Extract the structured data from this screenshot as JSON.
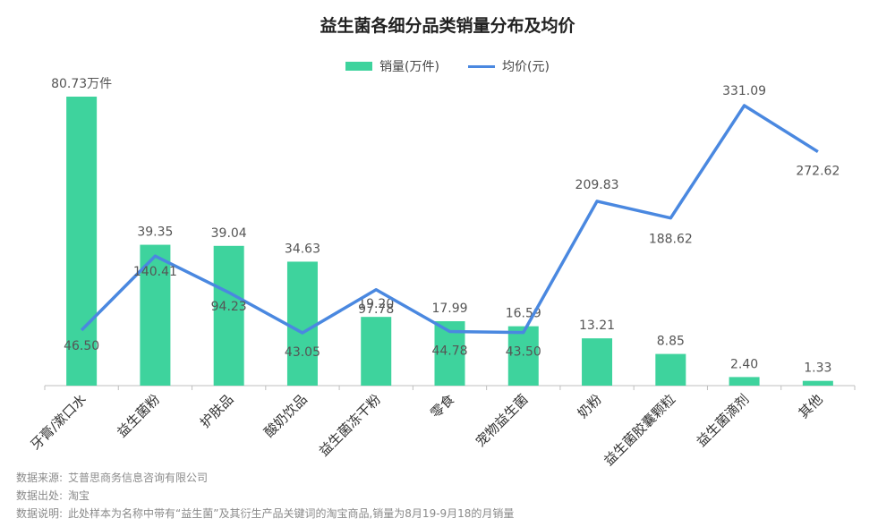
{
  "chart_data": {
    "type": "bar",
    "title": "益生菌各细分品类销量分布及均价",
    "categories": [
      "牙膏/漱口水",
      "益生菌粉",
      "护肤品",
      "酸奶饮品",
      "益生菌冻干粉",
      "零食",
      "宠物益生菌",
      "奶粉",
      "益生菌胶囊颗粒",
      "益生菌滴剂",
      "其他"
    ],
    "series": [
      {
        "name": "销量(万件)",
        "type": "bar",
        "values": [
          80.73,
          39.35,
          39.04,
          34.63,
          19.2,
          17.99,
          16.59,
          13.21,
          8.85,
          2.4,
          1.33
        ],
        "labels": [
          "80.73万件",
          "39.35",
          "39.04",
          "34.63",
          "19.20",
          "17.99",
          "16.59",
          "13.21",
          "8.85",
          "2.40",
          "1.33"
        ]
      },
      {
        "name": "均价(元)",
        "type": "line",
        "values": [
          46.5,
          140.41,
          94.23,
          43.05,
          97.78,
          44.78,
          43.5,
          209.83,
          188.62,
          331.09,
          272.62
        ],
        "labels": [
          "46.50",
          "140.41",
          "94.23",
          "43.05",
          "97.78",
          "44.78",
          "43.50",
          "209.83",
          "188.62",
          "331.09",
          "272.62"
        ]
      }
    ],
    "ylim_bar": [
      0,
      80.73
    ],
    "ylim_line": [
      0,
      331.09
    ],
    "legend": "top-center",
    "grid": false,
    "colors": {
      "bar": "#3ed39d",
      "line": "#4a88e0"
    }
  },
  "footer": {
    "source_label": "数据来源:",
    "source_value": "艾普思商务信息咨询有限公司",
    "origin_label": "数据出处:",
    "origin_value": "淘宝",
    "note_label": "数据说明:",
    "note_value": "此处样本为名称中带有“益生菌”及其衍生产品关键词的淘宝商品,销量为8月19-9月18的月销量"
  }
}
